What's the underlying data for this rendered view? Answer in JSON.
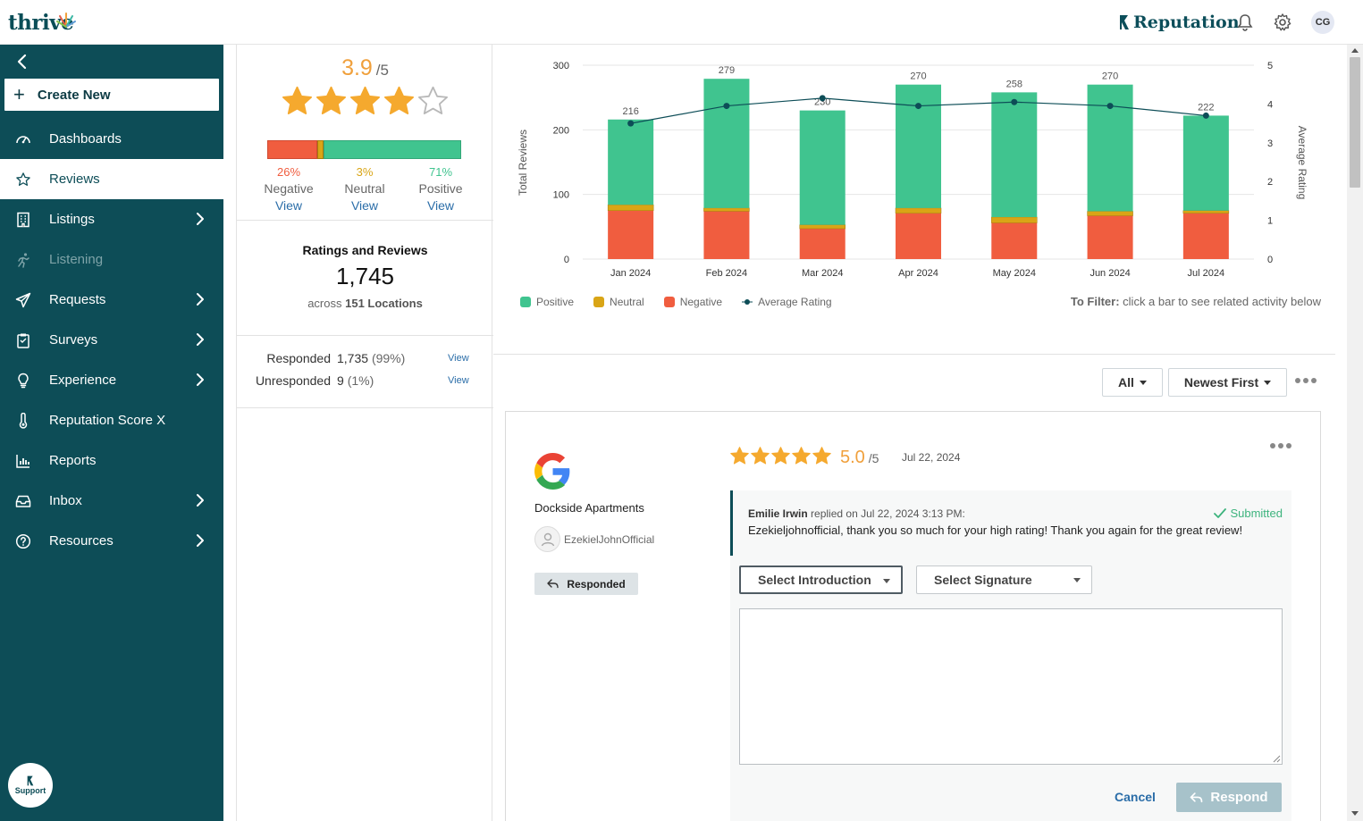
{
  "app": {
    "logo_text": "thrive",
    "brand": "Reputation",
    "user_initials": "CG"
  },
  "sidebar": {
    "create_new": "Create New",
    "items": [
      {
        "label": "Dashboards",
        "icon": "gauge-icon",
        "active": false,
        "chevron": false,
        "disabled": false
      },
      {
        "label": "Reviews",
        "icon": "star-icon",
        "active": true,
        "chevron": false,
        "disabled": false
      },
      {
        "label": "Listings",
        "icon": "building-icon",
        "active": false,
        "chevron": true,
        "disabled": false
      },
      {
        "label": "Listening",
        "icon": "runner-icon",
        "active": false,
        "chevron": false,
        "disabled": true
      },
      {
        "label": "Requests",
        "icon": "paper-plane-icon",
        "active": false,
        "chevron": true,
        "disabled": false
      },
      {
        "label": "Surveys",
        "icon": "clipboard-icon",
        "active": false,
        "chevron": true,
        "disabled": false
      },
      {
        "label": "Experience",
        "icon": "lightbulb-icon",
        "active": false,
        "chevron": true,
        "disabled": false
      },
      {
        "label": "Reputation Score X",
        "icon": "thermometer-icon",
        "active": false,
        "chevron": false,
        "disabled": false
      },
      {
        "label": "Reports",
        "icon": "bar-chart-icon",
        "active": false,
        "chevron": false,
        "disabled": false
      },
      {
        "label": "Inbox",
        "icon": "inbox-icon",
        "active": false,
        "chevron": true,
        "disabled": false
      },
      {
        "label": "Resources",
        "icon": "question-circle-icon",
        "active": false,
        "chevron": true,
        "disabled": false
      }
    ],
    "support_label": "Support"
  },
  "summary": {
    "average": "3.9",
    "average_of": "/5",
    "stars_value": 3.9,
    "sentiment": [
      {
        "key": "negative",
        "pct": "26%",
        "fraction": 0.26,
        "label": "Negative",
        "view": "View",
        "color": "#f05d3f"
      },
      {
        "key": "neutral",
        "pct": "3%",
        "fraction": 0.03,
        "label": "Neutral",
        "view": "View",
        "color": "#d9a516"
      },
      {
        "key": "positive",
        "pct": "71%",
        "fraction": 0.71,
        "label": "Positive",
        "view": "View",
        "color": "#40c48f"
      }
    ],
    "rr_title": "Ratings and Reviews",
    "rr_total": "1,745",
    "across_prefix": "across",
    "locations": "151 Locations",
    "responded": {
      "label": "Responded",
      "count": "1,735",
      "pct": "(99%)",
      "view": "View"
    },
    "unresponded": {
      "label": "Unresponded",
      "count": "9",
      "pct": "(1%)",
      "view": "View"
    }
  },
  "chart_data": {
    "type": "bar",
    "stacked": true,
    "categories": [
      "Jan 2024",
      "Feb 2024",
      "Mar 2024",
      "Apr 2024",
      "May 2024",
      "Jun 2024",
      "Jul 2024"
    ],
    "totals": [
      216,
      279,
      230,
      270,
      258,
      270,
      222
    ],
    "series": [
      {
        "name": "Negative",
        "color": "#f05d3f",
        "values": [
          75,
          74,
          47,
          71,
          56,
          67,
          71
        ]
      },
      {
        "name": "Neutral",
        "color": "#d9a516",
        "values": [
          9,
          5,
          6,
          8,
          9,
          7,
          4
        ]
      },
      {
        "name": "Positive",
        "color": "#40c48f",
        "values": [
          132,
          200,
          177,
          191,
          193,
          196,
          147
        ]
      }
    ],
    "line_series": {
      "name": "Average Rating",
      "color": "#0d4d57",
      "values": [
        3.5,
        3.95,
        4.15,
        3.95,
        4.05,
        3.95,
        3.7
      ]
    },
    "ylabel": "Total Reviews",
    "y2label": "Average Rating",
    "ylim": [
      0,
      300
    ],
    "y2lim": [
      0,
      5
    ],
    "yticks": [
      "0",
      "100",
      "200",
      "300"
    ],
    "y2ticks": [
      "0",
      "1",
      "2",
      "3",
      "4",
      "5"
    ],
    "grid": true,
    "legend": [
      {
        "label": "Positive",
        "color": "#40c48f",
        "shape": "square"
      },
      {
        "label": "Neutral",
        "color": "#d9a516",
        "shape": "square"
      },
      {
        "label": "Negative",
        "color": "#f05d3f",
        "shape": "square"
      },
      {
        "label": "Average Rating",
        "color": "#0d4d57",
        "shape": "line-dot"
      }
    ],
    "legend_position": "bottom-left",
    "filter_hint_bold": "To Filter:",
    "filter_hint": "click a bar to see related activity below"
  },
  "controls": {
    "filter_all": "All",
    "sort": "Newest First"
  },
  "review": {
    "source_icon": "google-icon",
    "business": "Dockside Apartments",
    "reviewer": "EzekielJohnOfficial",
    "status_badge": "Responded",
    "rating": "5.0",
    "rating_of": "/5",
    "rating_value": 5,
    "date": "Jul 22, 2024",
    "reply": {
      "author": "Emilie Irwin",
      "meta": "replied on Jul 22, 2024 3:13 PM:",
      "status": "Submitted",
      "text": "Ezekieljohnofficial, thank you so much for your high rating! Thank you again for the great review!"
    },
    "select_intro": "Select Introduction",
    "select_signature": "Select Signature",
    "response_text": "",
    "cancel": "Cancel",
    "respond": "Respond"
  }
}
